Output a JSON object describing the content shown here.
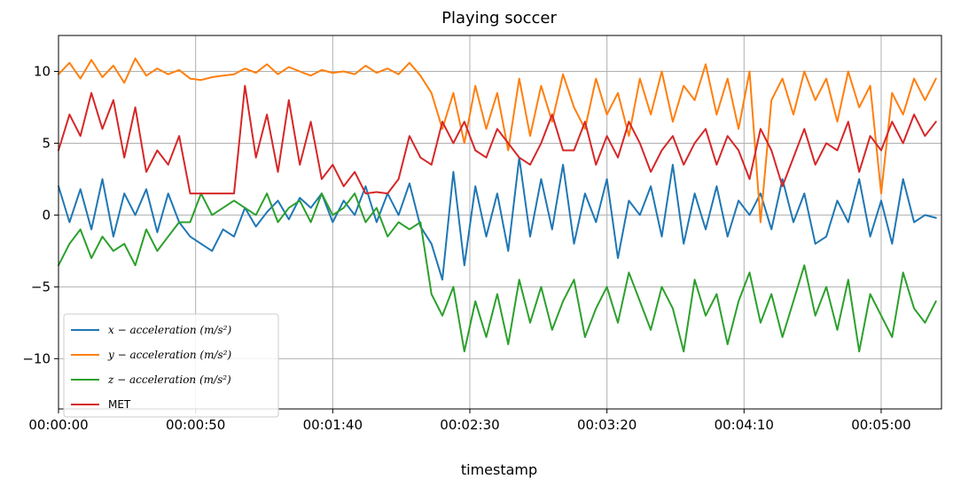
{
  "chart_data": {
    "type": "line",
    "title": "Playing soccer",
    "xlabel": "timestamp",
    "ylabel": "",
    "grid": true,
    "legend_position": "lower-left",
    "x_unit": "seconds",
    "xlim": [
      0,
      322
    ],
    "ylim": [
      -13.5,
      12.5
    ],
    "x_ticks": [
      {
        "value": 0,
        "label": "00:00:00"
      },
      {
        "value": 50,
        "label": "00:00:50"
      },
      {
        "value": 100,
        "label": "00:01:40"
      },
      {
        "value": 150,
        "label": "00:02:30"
      },
      {
        "value": 200,
        "label": "00:03:20"
      },
      {
        "value": 250,
        "label": "00:04:10"
      },
      {
        "value": 300,
        "label": "00:05:00"
      }
    ],
    "y_ticks": [
      {
        "value": 10,
        "label": "10"
      },
      {
        "value": 5,
        "label": "5"
      },
      {
        "value": 0,
        "label": "0"
      },
      {
        "value": -5,
        "label": "−5"
      },
      {
        "value": -10,
        "label": "−10"
      }
    ],
    "series": [
      {
        "name": "x − acceleration (m/s²)",
        "color": "#1f77b4",
        "x": [
          0,
          4,
          8,
          12,
          16,
          20,
          24,
          28,
          32,
          36,
          40,
          44,
          48,
          52,
          56,
          60,
          64,
          68,
          72,
          76,
          80,
          84,
          88,
          92,
          96,
          100,
          104,
          108,
          112,
          116,
          120,
          124,
          128,
          132,
          136,
          140,
          144,
          148,
          152,
          156,
          160,
          164,
          168,
          172,
          176,
          180,
          184,
          188,
          192,
          196,
          200,
          204,
          208,
          212,
          216,
          220,
          224,
          228,
          232,
          236,
          240,
          244,
          248,
          252,
          256,
          260,
          264,
          268,
          272,
          276,
          280,
          284,
          288,
          292,
          296,
          300,
          304,
          308,
          312,
          316,
          320
        ],
        "y": [
          2.0,
          -0.5,
          1.8,
          -1.0,
          2.5,
          -1.5,
          1.5,
          0.0,
          1.8,
          -1.2,
          1.5,
          -0.5,
          -1.5,
          -2.0,
          -2.5,
          -1.0,
          -1.5,
          0.5,
          -0.8,
          0.2,
          1.0,
          -0.3,
          1.2,
          0.5,
          1.5,
          -0.5,
          1.0,
          0.0,
          2.0,
          -0.5,
          1.5,
          0.0,
          2.2,
          -0.8,
          -2.0,
          -4.5,
          3.0,
          -3.5,
          2.0,
          -1.5,
          1.5,
          -2.5,
          4.0,
          -1.5,
          2.5,
          -1.0,
          3.5,
          -2.0,
          1.5,
          -0.5,
          2.5,
          -3.0,
          1.0,
          0.0,
          2.0,
          -1.5,
          3.5,
          -2.0,
          1.5,
          -1.0,
          2.0,
          -1.5,
          1.0,
          0.0,
          1.5,
          -1.0,
          2.5,
          -0.5,
          1.5,
          -2.0,
          -1.5,
          1.0,
          -0.5,
          2.5,
          -1.5,
          1.0,
          -2.0,
          2.5,
          -0.5,
          0.0,
          -0.2
        ]
      },
      {
        "name": "y − acceleration (m/s²)",
        "color": "#ff7f0e",
        "x": [
          0,
          4,
          8,
          12,
          16,
          20,
          24,
          28,
          32,
          36,
          40,
          44,
          48,
          52,
          56,
          60,
          64,
          68,
          72,
          76,
          80,
          84,
          88,
          92,
          96,
          100,
          104,
          108,
          112,
          116,
          120,
          124,
          128,
          132,
          136,
          140,
          144,
          148,
          152,
          156,
          160,
          164,
          168,
          172,
          176,
          180,
          184,
          188,
          192,
          196,
          200,
          204,
          208,
          212,
          216,
          220,
          224,
          228,
          232,
          236,
          240,
          244,
          248,
          252,
          256,
          260,
          264,
          268,
          272,
          276,
          280,
          284,
          288,
          292,
          296,
          300,
          304,
          308,
          312,
          316,
          320
        ],
        "y": [
          9.8,
          10.6,
          9.5,
          10.8,
          9.6,
          10.4,
          9.2,
          10.9,
          9.7,
          10.2,
          9.8,
          10.1,
          9.5,
          9.4,
          9.6,
          9.7,
          9.8,
          10.2,
          9.9,
          10.5,
          9.8,
          10.3,
          10.0,
          9.7,
          10.1,
          9.9,
          10.0,
          9.8,
          10.4,
          9.9,
          10.2,
          9.8,
          10.6,
          9.7,
          8.5,
          6.0,
          8.5,
          5.0,
          9.0,
          6.0,
          8.5,
          4.5,
          9.5,
          5.5,
          9.0,
          6.5,
          9.8,
          7.5,
          6.0,
          9.5,
          7.0,
          8.5,
          5.5,
          9.5,
          7.0,
          10.0,
          6.5,
          9.0,
          8.0,
          10.5,
          7.0,
          9.5,
          6.0,
          10.0,
          -0.5,
          8.0,
          9.5,
          7.0,
          10.0,
          8.0,
          9.5,
          6.5,
          10.0,
          7.5,
          9.0,
          1.5,
          8.5,
          7.0,
          9.5,
          8.0,
          9.5
        ]
      },
      {
        "name": "z − acceleration (m/s²)",
        "color": "#2ca02c",
        "x": [
          0,
          4,
          8,
          12,
          16,
          20,
          24,
          28,
          32,
          36,
          40,
          44,
          48,
          52,
          56,
          60,
          64,
          68,
          72,
          76,
          80,
          84,
          88,
          92,
          96,
          100,
          104,
          108,
          112,
          116,
          120,
          124,
          128,
          132,
          136,
          140,
          144,
          148,
          152,
          156,
          160,
          164,
          168,
          172,
          176,
          180,
          184,
          188,
          192,
          196,
          200,
          204,
          208,
          212,
          216,
          220,
          224,
          228,
          232,
          236,
          240,
          244,
          248,
          252,
          256,
          260,
          264,
          268,
          272,
          276,
          280,
          284,
          288,
          292,
          296,
          300,
          304,
          308,
          312,
          316,
          320
        ],
        "y": [
          -3.5,
          -2.0,
          -1.0,
          -3.0,
          -1.5,
          -2.5,
          -2.0,
          -3.5,
          -1.0,
          -2.5,
          -1.5,
          -0.5,
          -0.5,
          1.5,
          0.0,
          0.5,
          1.0,
          0.5,
          0.0,
          1.5,
          -0.5,
          0.5,
          1.0,
          -0.5,
          1.5,
          0.0,
          0.5,
          1.5,
          -0.5,
          0.5,
          -1.5,
          -0.5,
          -1.0,
          -0.5,
          -5.5,
          -7.0,
          -5.0,
          -9.5,
          -6.0,
          -8.5,
          -5.5,
          -9.0,
          -4.5,
          -7.5,
          -5.0,
          -8.0,
          -6.0,
          -4.5,
          -8.5,
          -6.5,
          -5.0,
          -7.5,
          -4.0,
          -6.0,
          -8.0,
          -5.0,
          -6.5,
          -9.5,
          -4.5,
          -7.0,
          -5.5,
          -9.0,
          -6.0,
          -4.0,
          -7.5,
          -5.5,
          -8.5,
          -6.0,
          -3.5,
          -7.0,
          -5.0,
          -8.0,
          -4.5,
          -9.5,
          -5.5,
          -7.0,
          -8.5,
          -4.0,
          -6.5,
          -7.5,
          -6.0
        ]
      },
      {
        "name": "MET",
        "color": "#d62728",
        "x": [
          0,
          4,
          8,
          12,
          16,
          20,
          24,
          28,
          32,
          36,
          40,
          44,
          48,
          52,
          56,
          60,
          64,
          68,
          72,
          76,
          80,
          84,
          88,
          92,
          96,
          100,
          104,
          108,
          112,
          116,
          120,
          124,
          128,
          132,
          136,
          140,
          144,
          148,
          152,
          156,
          160,
          164,
          168,
          172,
          176,
          180,
          184,
          188,
          192,
          196,
          200,
          204,
          208,
          212,
          216,
          220,
          224,
          228,
          232,
          236,
          240,
          244,
          248,
          252,
          256,
          260,
          264,
          268,
          272,
          276,
          280,
          284,
          288,
          292,
          296,
          300,
          304,
          308,
          312,
          316,
          320
        ],
        "y": [
          4.5,
          7.0,
          5.5,
          8.5,
          6.0,
          8.0,
          4.0,
          7.5,
          3.0,
          4.5,
          3.5,
          5.5,
          1.5,
          1.5,
          1.5,
          1.5,
          1.5,
          9.0,
          4.0,
          7.0,
          3.0,
          8.0,
          3.5,
          6.5,
          2.5,
          3.5,
          2.0,
          3.0,
          1.5,
          1.6,
          1.5,
          2.5,
          5.5,
          4.0,
          3.5,
          6.5,
          5.0,
          6.5,
          4.5,
          4.0,
          6.0,
          5.0,
          4.0,
          3.5,
          5.0,
          7.0,
          4.5,
          4.5,
          6.5,
          3.5,
          5.5,
          4.0,
          6.5,
          5.0,
          3.0,
          4.5,
          5.5,
          3.5,
          5.0,
          6.0,
          3.5,
          5.5,
          4.5,
          2.5,
          6.0,
          4.5,
          2.0,
          4.0,
          6.0,
          3.5,
          5.0,
          4.5,
          6.5,
          3.0,
          5.5,
          4.5,
          6.5,
          5.0,
          7.0,
          5.5,
          6.5
        ]
      }
    ]
  }
}
